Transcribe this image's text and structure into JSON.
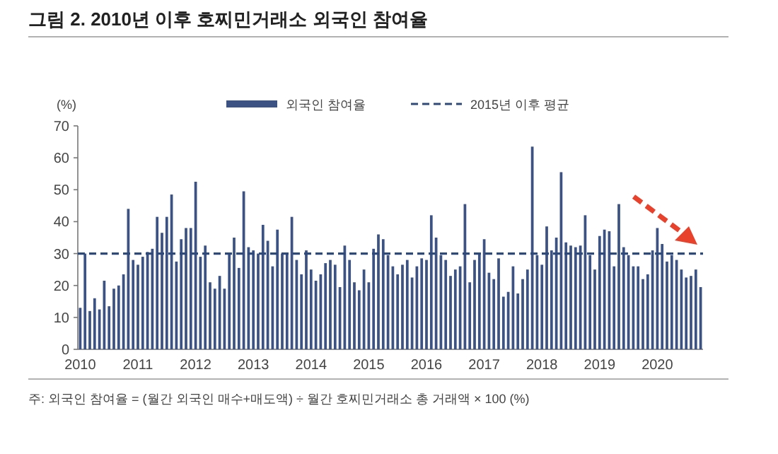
{
  "chart_data": {
    "type": "bar",
    "title": "그림 2. 2010년 이후 호찌민거래소 외국인 참여율",
    "ylabel": "(%)",
    "categories": [
      "2010",
      null,
      null,
      null,
      null,
      null,
      null,
      null,
      null,
      null,
      null,
      null,
      "2011",
      null,
      null,
      null,
      null,
      null,
      null,
      null,
      null,
      null,
      null,
      null,
      "2012",
      null,
      null,
      null,
      null,
      null,
      null,
      null,
      null,
      null,
      null,
      null,
      "2013",
      null,
      null,
      null,
      null,
      null,
      null,
      null,
      null,
      null,
      null,
      null,
      "2014",
      null,
      null,
      null,
      null,
      null,
      null,
      null,
      null,
      null,
      null,
      null,
      "2015",
      null,
      null,
      null,
      null,
      null,
      null,
      null,
      null,
      null,
      null,
      null,
      "2016",
      null,
      null,
      null,
      null,
      null,
      null,
      null,
      null,
      null,
      null,
      null,
      "2017",
      null,
      null,
      null,
      null,
      null,
      null,
      null,
      null,
      null,
      null,
      null,
      "2018",
      null,
      null,
      null,
      null,
      null,
      null,
      null,
      null,
      null,
      null,
      null,
      "2019",
      null,
      null,
      null,
      null,
      null,
      null,
      null,
      null,
      null,
      null,
      null,
      "2020",
      null,
      null,
      null,
      null,
      null,
      null,
      null,
      null,
      null
    ],
    "series": [
      {
        "name": "외국인 참여율",
        "color": "#3b5283",
        "values": [
          13,
          30,
          12,
          16,
          12.5,
          21.5,
          13.5,
          19,
          20,
          23.5,
          44,
          28,
          26.5,
          29,
          30.5,
          31.5,
          41.5,
          36.5,
          41.5,
          48.5,
          27.5,
          34.5,
          38,
          38,
          52.5,
          29,
          32.5,
          21,
          19,
          23,
          19,
          30,
          35,
          25.5,
          49.5,
          32,
          31,
          30,
          39,
          34,
          26,
          37.5,
          30,
          30,
          41.5,
          28,
          23.5,
          31,
          25,
          21.5,
          23.5,
          27,
          28,
          26.5,
          19.5,
          32.5,
          28,
          21,
          18.5,
          25,
          21,
          31.5,
          36,
          34.5,
          29.5,
          26,
          23.5,
          26.5,
          28,
          22.5,
          26,
          28.5,
          28,
          42,
          35,
          29.5,
          28,
          23,
          25,
          26,
          45.5,
          21,
          28,
          30,
          34.5,
          24,
          22,
          28.5,
          16.5,
          18,
          26,
          17.5,
          22,
          25,
          63.5,
          29.5,
          26.5,
          38.5,
          31,
          35,
          55.5,
          33.5,
          32.5,
          32,
          32.5,
          42,
          29.5,
          25,
          35.5,
          37.5,
          37,
          26,
          45.5,
          32,
          29.5,
          26,
          26,
          22,
          23.5,
          31,
          38,
          33,
          27.5,
          29.5,
          28,
          25,
          22.5,
          23,
          25,
          19.5
        ]
      }
    ],
    "ylim": [
      0,
      70
    ],
    "yticks": [
      0,
      10,
      20,
      30,
      40,
      50,
      60,
      70
    ],
    "ref_lines": [
      {
        "axis": "y",
        "value": 30,
        "label": "2015년 이후 평균",
        "color": "#2e4a7a",
        "line_style": "dashed"
      }
    ],
    "legend": "top",
    "grid": false,
    "annotations": [
      "주: 외국인 참여율 = (월간 외국인 매수+매도액) ÷ 월간 호찌민거래소 총 거래액 × 100 (%)"
    ]
  }
}
